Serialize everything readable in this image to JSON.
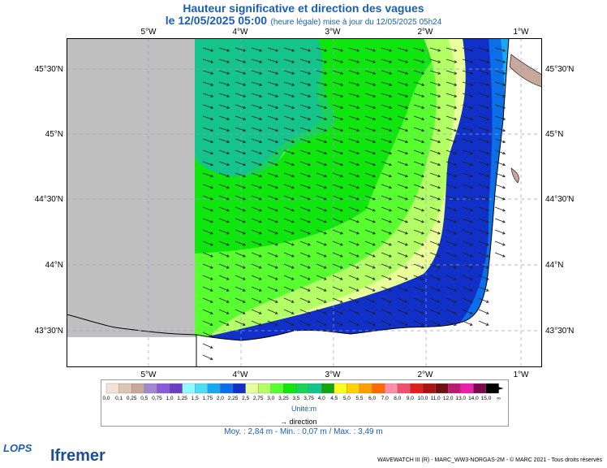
{
  "header": {
    "title": "Hauteur significative et direction des vagues",
    "date": "le 12/05/2025 05:00",
    "note": "(heure légale) mise à jour du 12/05/2025 05h24"
  },
  "axes": {
    "longitudes": [
      "5°W",
      "4°W",
      "3°W",
      "2°W",
      "1°W"
    ],
    "latitudes": [
      "45°30'N",
      "45°N",
      "44°30'N",
      "44°N",
      "43°30'N"
    ]
  },
  "legend": {
    "labels": [
      "0,0",
      "0,1",
      "0,25",
      "0,5",
      "0,75",
      "1,0",
      "1,25",
      "1,5",
      "1,75",
      "2,0",
      "2,25",
      "2,5",
      "2,75",
      "3,0",
      "3,25",
      "3,5",
      "3,75",
      "4,0",
      "4,5",
      "5,0",
      "5,5",
      "6,0",
      "7,0",
      "8,0",
      "9,0",
      "10,0",
      "11,0",
      "12,0",
      "13,0",
      "14,0",
      "15,0",
      "∞"
    ],
    "colors": [
      "#f2e2d6",
      "#dcc4b4",
      "#c7a89a",
      "#a088d0",
      "#8c5ad8",
      "#6a3fc4",
      "#8ffcff",
      "#4fdcf5",
      "#16a9f2",
      "#0a6fe8",
      "#1030c8",
      "#e9ff9a",
      "#b2ff66",
      "#58ff2e",
      "#0ee60e",
      "#18d25a",
      "#14c48a",
      "#12a612",
      "#ffff1e",
      "#ffd200",
      "#ff9e00",
      "#ff6a00",
      "#ff8ca8",
      "#f0506e",
      "#e01e1e",
      "#aa1414",
      "#701010",
      "#ba1a70",
      "#ea1ea8",
      "#7a0a4a",
      "#000000"
    ],
    "unit": "Unité:m",
    "direction_label": "direction"
  },
  "stats": "Moy. : 2,84 m  -  Min. : 0,07 m / Max. : 3,49 m",
  "branding": {
    "lops": "LOPS",
    "ifremer": "Ifremer",
    "credit": "WAVEWATCH III (R) - MARC_WW3-NORGAS-2M - © MARC 2021 - Tous droits réservés"
  }
}
